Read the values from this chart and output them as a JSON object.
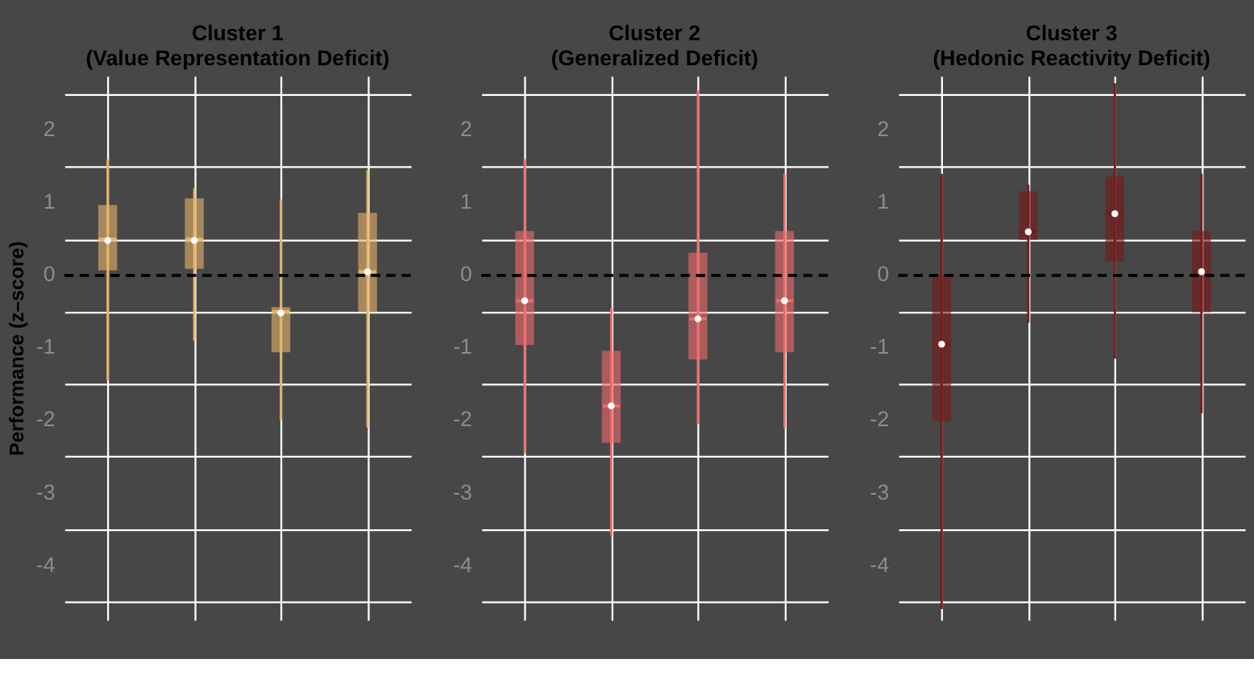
{
  "chart_data": [
    {
      "type": "box",
      "title": "Cluster 1\n(Value Representation Deficit)",
      "ylabel": "Performance (z–score)",
      "categories": [
        null,
        null,
        null,
        null
      ],
      "color": "#e8b46a",
      "boxes": [
        {
          "low": -1.45,
          "q1": 0.08,
          "median": 0.5,
          "q3": 0.96,
          "high": 1.6,
          "mean": 0.48
        },
        {
          "low": -0.9,
          "q1": 0.1,
          "median": 0.5,
          "q3": 1.05,
          "high": 1.2,
          "mean": 0.48
        },
        {
          "low": -2.0,
          "q1": -1.05,
          "median": -0.5,
          "q3": -0.45,
          "high": 1.05,
          "mean": -0.52
        },
        {
          "low": -2.1,
          "q1": -0.5,
          "median": 0.05,
          "q3": 0.85,
          "high": 1.45,
          "mean": 0.05
        }
      ],
      "ylim": [
        -4.75,
        2.75
      ],
      "yticks": [
        {
          "value": -4.5,
          "label": null
        },
        -4,
        {
          "value": -3.5,
          "label": null
        },
        -3,
        {
          "value": -2.5,
          "label": null
        },
        -2,
        {
          "value": -1.5,
          "label": null
        },
        -1,
        {
          "value": -0.5,
          "label": null
        },
        0,
        {
          "value": 0.5,
          "label": null
        },
        1,
        {
          "value": 1.5,
          "label": null
        },
        2,
        {
          "value": 2.5,
          "label": null
        }
      ],
      "grid": true,
      "ref_lines": [
        {
          "axis": "y",
          "value": 0,
          "color": "#000000",
          "line_style": "dashed"
        }
      ],
      "tick_labels": "y"
    },
    {
      "type": "box",
      "title": "Cluster 2\n(Generalized Deficit)",
      "categories": [
        null,
        null,
        null,
        null
      ],
      "color": "#f06a6a",
      "boxes": [
        {
          "low": -2.45,
          "q1": -0.95,
          "median": -0.35,
          "q3": 0.6,
          "high": 1.6,
          "mean": -0.35
        },
        {
          "low": -3.6,
          "q1": -2.3,
          "median": -1.8,
          "q3": -1.05,
          "high": -0.45,
          "mean": -1.8
        },
        {
          "low": -2.05,
          "q1": -1.15,
          "median": -0.6,
          "q3": 0.3,
          "high": 2.55,
          "mean": -0.6
        },
        {
          "low": -2.1,
          "q1": -1.05,
          "median": -0.35,
          "q3": 0.6,
          "high": 1.4,
          "mean": -0.35
        }
      ],
      "ylim": [
        -4.75,
        2.75
      ],
      "yticks": [
        {
          "value": -4.5,
          "label": null
        },
        -4,
        {
          "value": -3.5,
          "label": null
        },
        -3,
        {
          "value": -2.5,
          "label": null
        },
        -2,
        {
          "value": -1.5,
          "label": null
        },
        -1,
        {
          "value": -0.5,
          "label": null
        },
        0,
        {
          "value": 0.5,
          "label": null
        },
        1,
        {
          "value": 1.5,
          "label": null
        },
        2,
        {
          "value": 2.5,
          "label": null
        }
      ],
      "grid": true,
      "ref_lines": [
        {
          "axis": "y",
          "value": 0,
          "color": "#000000",
          "line_style": "dashed"
        }
      ],
      "tick_labels": "y"
    },
    {
      "type": "box",
      "title": "Cluster 3\n(Hedonic Reactivity Deficit)",
      "categories": [
        null,
        null,
        null,
        null
      ],
      "color": "#7a1a1a",
      "boxes": [
        {
          "low": -4.6,
          "q1": -2.0,
          "median": -0.95,
          "q3": 0.0,
          "high": 1.4,
          "mean": -0.95
        },
        {
          "low": -0.65,
          "q1": 0.5,
          "median": 0.6,
          "q3": 1.15,
          "high": 1.25,
          "mean": 0.6
        },
        {
          "low": -1.15,
          "q1": 0.2,
          "median": 0.85,
          "q3": 1.35,
          "high": 2.65,
          "mean": 0.85
        },
        {
          "low": -1.9,
          "q1": -0.5,
          "median": 0.05,
          "q3": 0.6,
          "high": 1.4,
          "mean": 0.05
        }
      ],
      "ylim": [
        -4.75,
        2.75
      ],
      "yticks": [
        {
          "value": -4.5,
          "label": null
        },
        -4,
        {
          "value": -3.5,
          "label": null
        },
        -3,
        {
          "value": -2.5,
          "label": null
        },
        -2,
        {
          "value": -1.5,
          "label": null
        },
        -1,
        {
          "value": -0.5,
          "label": null
        },
        0,
        {
          "value": 0.5,
          "label": null
        },
        1,
        {
          "value": 1.5,
          "label": null
        },
        2,
        {
          "value": 2.5,
          "label": null
        }
      ],
      "grid": true,
      "ref_lines": [
        {
          "axis": "y",
          "value": 0,
          "color": "#000000",
          "line_style": "dashed"
        }
      ],
      "tick_labels": "y"
    }
  ]
}
